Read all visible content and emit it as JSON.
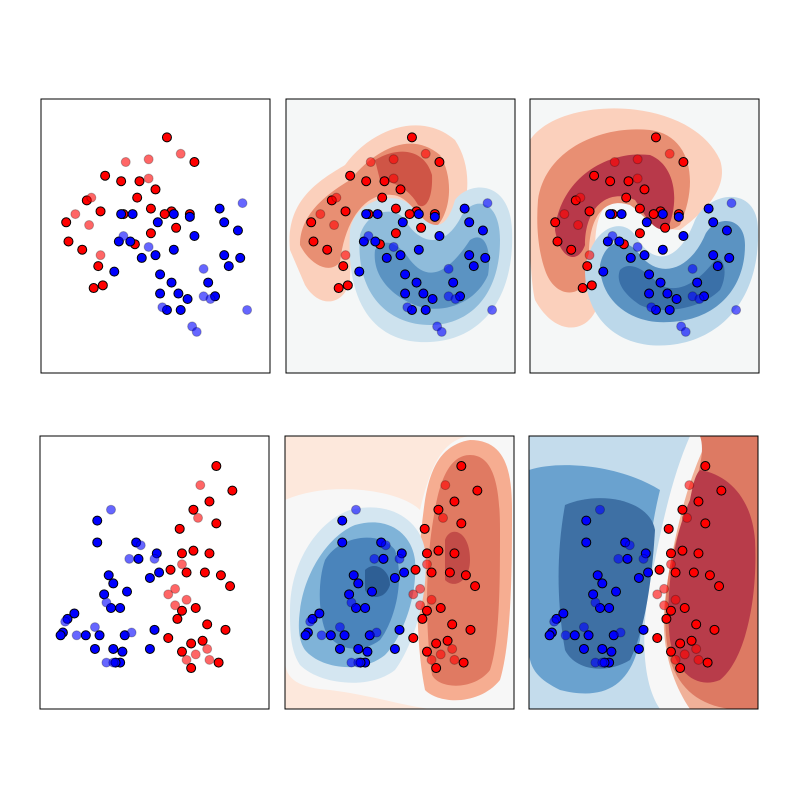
{
  "chart_data": [
    {
      "type": "scatter",
      "xlim": [
        0,
        100
      ],
      "ylim": [
        0,
        100
      ],
      "series": [
        {
          "color": "#ff0000",
          "opacity": 1,
          "x": [
            55,
            67,
            28,
            35,
            43,
            50,
            11,
            20,
            26,
            36,
            48,
            57,
            65,
            59,
            48,
            41,
            18,
            12,
            25,
            23,
            27,
            54,
            42
          ],
          "values": [
            86,
            77,
            72,
            70,
            70,
            67,
            55,
            63,
            59,
            58,
            60,
            59,
            58,
            53,
            51,
            47,
            45,
            48,
            39,
            31,
            32,
            58,
            64
          ]
        },
        {
          "color": "#0000ff",
          "opacity": 1,
          "x": [
            35,
            40,
            51,
            58,
            67,
            65,
            78,
            80,
            34,
            39,
            50,
            58,
            32,
            44,
            52,
            57,
            60,
            64,
            52,
            55,
            61,
            73,
            76,
            82,
            87,
            86,
            80
          ],
          "values": [
            58,
            58,
            55,
            58,
            50,
            57,
            60,
            55,
            48,
            48,
            43,
            45,
            37,
            42,
            36,
            33,
            29,
            27,
            29,
            23,
            23,
            33,
            28,
            39,
            42,
            52,
            43
          ]
        },
        {
          "color": "#ff0000",
          "opacity": 0.6,
          "x": [
            61,
            37,
            47,
            22,
            21,
            15,
            26,
            47
          ],
          "values": [
            80,
            77,
            78,
            64,
            54,
            58,
            43,
            71
          ]
        },
        {
          "color": "#0000ff",
          "opacity": 0.6,
          "x": [
            88,
            47,
            71,
            53,
            66,
            68,
            71,
            74,
            90,
            36
          ],
          "values": [
            62,
            46,
            38,
            24,
            17,
            15,
            28,
            27,
            23,
            50
          ]
        }
      ]
    },
    {
      "type": "scatter",
      "xlim": [
        0,
        100
      ],
      "ylim": [
        0,
        100
      ],
      "series": [
        {
          "color": "#ff0000",
          "opacity": 1,
          "x": [
            77,
            84,
            74,
            67,
            77,
            61,
            62,
            74,
            67,
            57,
            64,
            72,
            79,
            83,
            62,
            60,
            68,
            73,
            66,
            62,
            81,
            71,
            56,
            66,
            78
          ],
          "values": [
            89,
            80,
            76,
            73,
            68,
            66,
            57,
            57,
            58,
            51,
            50,
            50,
            49,
            45,
            36,
            33,
            37,
            31,
            24,
            21,
            29,
            25,
            26,
            15,
            17
          ]
        },
        {
          "color": "#0000ff",
          "opacity": 1,
          "x": [
            25,
            25,
            42,
            43,
            51,
            48,
            52,
            30,
            32,
            28,
            38,
            31,
            35,
            12,
            15,
            10,
            9,
            20,
            26,
            37,
            50,
            32,
            36,
            48,
            35,
            33,
            24
          ],
          "values": [
            69,
            61,
            61,
            55,
            57,
            48,
            50,
            49,
            46,
            42,
            43,
            37,
            37,
            33,
            35,
            28,
            27,
            27,
            27,
            27,
            29,
            22,
            21,
            22,
            17,
            17,
            22
          ]
        },
        {
          "color": "#ff0000",
          "opacity": 0.6,
          "x": [
            70,
            69,
            62,
            59,
            56,
            64,
            59,
            73,
            74,
            64,
            68
          ],
          "values": [
            82,
            70,
            53,
            44,
            42,
            40,
            38,
            22,
            18,
            18,
            20
          ]
        },
        {
          "color": "#0000ff",
          "opacity": 0.6,
          "x": [
            31,
            44,
            39,
            50,
            29,
            24,
            16,
            11,
            29,
            32,
            40
          ],
          "values": [
            73,
            60,
            55,
            55,
            39,
            30,
            27,
            32,
            17,
            17,
            28
          ]
        }
      ]
    }
  ]
}
